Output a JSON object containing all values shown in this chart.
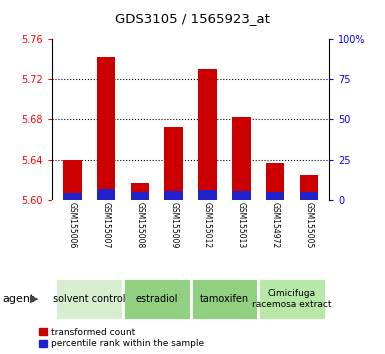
{
  "title": "GDS3105 / 1565923_at",
  "samples": [
    "GSM155006",
    "GSM155007",
    "GSM155008",
    "GSM155009",
    "GSM155012",
    "GSM155013",
    "GSM154972",
    "GSM155005"
  ],
  "red_values": [
    5.64,
    5.742,
    5.617,
    5.673,
    5.73,
    5.682,
    5.637,
    5.625
  ],
  "blue_values": [
    5.607,
    5.611,
    5.608,
    5.609,
    5.61,
    5.609,
    5.608,
    5.608
  ],
  "ymin": 5.6,
  "ymax": 5.76,
  "yticks": [
    5.6,
    5.64,
    5.68,
    5.72,
    5.76
  ],
  "right_yticks": [
    0,
    25,
    50,
    75,
    100
  ],
  "right_yticklabels": [
    "0",
    "25",
    "50",
    "75",
    "100%"
  ],
  "bar_width": 0.55,
  "red_color": "#cc0000",
  "blue_color": "#2222cc",
  "bg_color": "#d0d0d0",
  "plot_bg": "#ffffff",
  "agent_label": "agent",
  "legend_red": "transformed count",
  "legend_blue": "percentile rank within the sample",
  "group_starts": [
    -0.5,
    1.5,
    3.5,
    5.5
  ],
  "group_ends": [
    1.5,
    3.5,
    5.5,
    7.5
  ],
  "group_labels": [
    "solvent control",
    "estradiol",
    "tamoxifen",
    "Cimicifuga\nracemosa extract"
  ],
  "group_colors": [
    "#d8eed0",
    "#90d080",
    "#90d080",
    "#b8e8a8"
  ],
  "dividers": [
    1.5,
    3.5,
    5.5
  ]
}
